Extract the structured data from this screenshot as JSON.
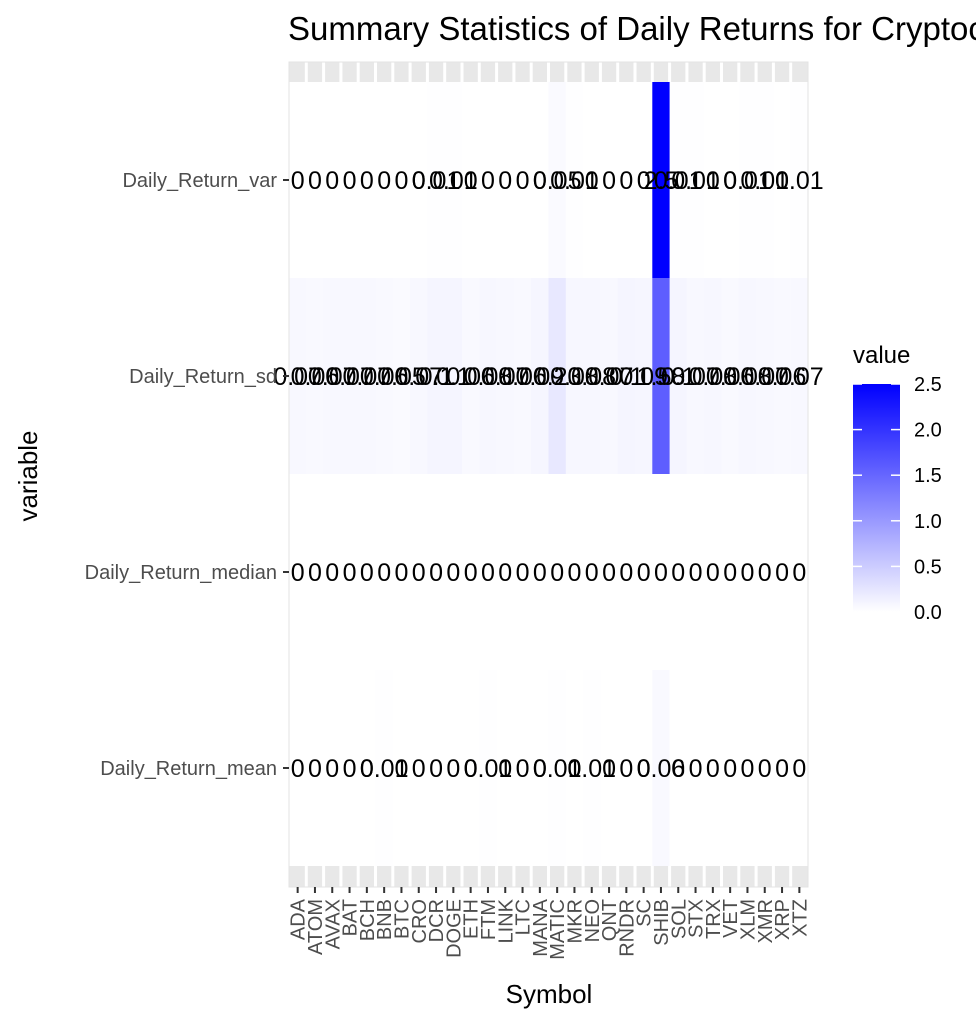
{
  "chart_data": {
    "type": "heatmap",
    "title": "Summary Statistics of Daily Returns for Cryptocurrencies",
    "xlabel": "Symbol",
    "ylabel": "variable",
    "x": [
      "ADA",
      "ATOM",
      "AVAX",
      "BAT",
      "BCH",
      "BNB",
      "BTC",
      "CRO",
      "DCR",
      "DOGE",
      "ETH",
      "FTM",
      "LINK",
      "LTC",
      "MANA",
      "MATIC",
      "MKR",
      "NEO",
      "QNT",
      "RNDR",
      "SC",
      "SHIB",
      "SOL",
      "STX",
      "TRX",
      "VET",
      "XLM",
      "XMR",
      "XRP",
      "XTZ"
    ],
    "y": [
      "Daily_Return_var",
      "Daily_Return_sd",
      "Daily_Return_median",
      "Daily_Return_mean"
    ],
    "values": [
      [
        0,
        0,
        0,
        0,
        0,
        0,
        0,
        0,
        0.01,
        0.01,
        0,
        0,
        0,
        0,
        0,
        0.05,
        0.01,
        0,
        0,
        0,
        0,
        2.5,
        0.01,
        0.01,
        0,
        0,
        0.01,
        0.01,
        0,
        0.01
      ],
      [
        0.07,
        0.06,
        0.07,
        0.07,
        0.07,
        0.06,
        0.05,
        0.07,
        0.1,
        0.1,
        0.06,
        0.08,
        0.07,
        0.06,
        0.09,
        0.23,
        0.08,
        0.08,
        0.07,
        0.1,
        0.09,
        1.58,
        0.1,
        0.07,
        0.08,
        0.06,
        0.08,
        0.07,
        0.06,
        0.07
      ],
      [
        0,
        0,
        0,
        0,
        0,
        0,
        0,
        0,
        0,
        0,
        0,
        0,
        0,
        0,
        0,
        0,
        0,
        0,
        0,
        0,
        0,
        0,
        0,
        0,
        0,
        0,
        0,
        0,
        0,
        0
      ],
      [
        0,
        0,
        0,
        0,
        0,
        0.01,
        0,
        0,
        0,
        0,
        0,
        0.01,
        0,
        0,
        0,
        0.01,
        0,
        0.01,
        0,
        0,
        0,
        0.06,
        0,
        0,
        0,
        0,
        0,
        0,
        0,
        0
      ]
    ],
    "labels": [
      [
        "0",
        "0",
        "0",
        "0",
        "0",
        "0",
        "0",
        "0",
        "0.01",
        "0.01",
        "0",
        "0",
        "0",
        "0",
        "0",
        "0.05",
        "0.01",
        "0",
        "0",
        "0",
        "0",
        "2.5",
        "0.01",
        "0.01",
        "0",
        "0",
        "0.01",
        "0.01",
        "0",
        "0.01"
      ],
      [
        "0.07",
        "0.06",
        "0.07",
        "0.07",
        "0.07",
        "0.06",
        "0.05",
        "0.07",
        "0.1",
        "0.1",
        "0.06",
        "0.08",
        "0.07",
        "0.06",
        "0.09",
        "0.23",
        "0.08",
        "0.08",
        "0.07",
        "0.1",
        "0.09",
        "1.58",
        "0.1",
        "0.07",
        "0.08",
        "0.06",
        "0.08",
        "0.07",
        "0.06",
        "0.07"
      ],
      [
        "0",
        "0",
        "0",
        "0",
        "0",
        "0",
        "0",
        "0",
        "0",
        "0",
        "0",
        "0",
        "0",
        "0",
        "0",
        "0",
        "0",
        "0",
        "0",
        "0",
        "0",
        "0",
        "0",
        "0",
        "0",
        "0",
        "0",
        "0",
        "0",
        "0"
      ],
      [
        "0",
        "0",
        "0",
        "0",
        "0",
        "0.01",
        "0",
        "0",
        "0",
        "0",
        "0",
        "0.01",
        "0",
        "0",
        "0",
        "0.01",
        "0",
        "0.01",
        "0",
        "0",
        "0",
        "0.06",
        "0",
        "0",
        "0",
        "0",
        "0",
        "0",
        "0",
        "0"
      ]
    ],
    "legend": {
      "title": "value",
      "ticks": [
        2.5,
        2.0,
        1.5,
        1.0,
        0.5,
        0.0
      ],
      "tick_labels": [
        "2.5",
        "2.0",
        "1.5",
        "1.0",
        "0.5",
        "0.0"
      ],
      "range": [
        0,
        2.5
      ],
      "low_color": "#ffffff",
      "high_color": "#0000ff",
      "placement": "right"
    },
    "grid": true
  }
}
